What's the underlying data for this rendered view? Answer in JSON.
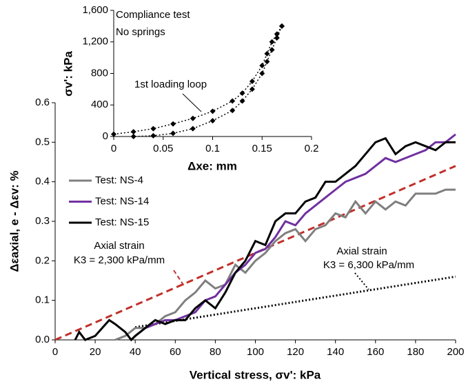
{
  "chart_data": [
    {
      "type": "line",
      "xlabel": "Vertical stress, σv': kPa",
      "ylabel": "Δεaxial, e - Δεv: %",
      "xlim": [
        0,
        200
      ],
      "xticks": [
        0,
        20,
        40,
        60,
        80,
        100,
        120,
        140,
        160,
        180,
        200
      ],
      "ylim": [
        0,
        0.6
      ],
      "yticks": [
        {
          "value": 0,
          "label": "0.0"
        },
        0.1,
        0.2,
        0.3,
        0.4,
        0.5,
        0.6
      ],
      "legend": "upper left",
      "series": [
        {
          "name": "Test: NS-4",
          "color": "#7f7f7f",
          "x": [
            30,
            35,
            40,
            45,
            50,
            55,
            60,
            65,
            70,
            75,
            80,
            85,
            90,
            95,
            100,
            105,
            110,
            115,
            120,
            125,
            130,
            135,
            140,
            145,
            150,
            155,
            160,
            165,
            170,
            175,
            180,
            185,
            190,
            195,
            200
          ],
          "values": [
            0.0,
            0.01,
            0.03,
            0.03,
            0.04,
            0.06,
            0.07,
            0.1,
            0.12,
            0.15,
            0.13,
            0.14,
            0.19,
            0.17,
            0.2,
            0.22,
            0.25,
            0.27,
            0.28,
            0.25,
            0.28,
            0.29,
            0.32,
            0.31,
            0.35,
            0.32,
            0.35,
            0.33,
            0.35,
            0.34,
            0.37,
            0.37,
            0.37,
            0.38,
            0.38
          ]
        },
        {
          "name": "Test: NS-14",
          "color": "#7030a0",
          "x": [
            38,
            40,
            45,
            50,
            55,
            60,
            65,
            70,
            75,
            80,
            85,
            90,
            95,
            100,
            105,
            110,
            115,
            120,
            125,
            130,
            135,
            140,
            145,
            150,
            155,
            160,
            165,
            170,
            175,
            180,
            185,
            190,
            195,
            200
          ],
          "values": [
            0.0,
            0.01,
            0.03,
            0.04,
            0.05,
            0.05,
            0.06,
            0.07,
            0.1,
            0.11,
            0.14,
            0.17,
            0.19,
            0.22,
            0.23,
            0.26,
            0.3,
            0.29,
            0.32,
            0.34,
            0.36,
            0.38,
            0.4,
            0.41,
            0.42,
            0.44,
            0.46,
            0.45,
            0.46,
            0.47,
            0.48,
            0.5,
            0.5,
            0.52
          ]
        },
        {
          "name": "Test: NS-15",
          "color": "#000000",
          "x": [
            10,
            12,
            15,
            20,
            27,
            30,
            35,
            38,
            40,
            45,
            50,
            55,
            60,
            65,
            70,
            75,
            80,
            85,
            90,
            95,
            100,
            105,
            110,
            115,
            120,
            125,
            130,
            135,
            140,
            145,
            150,
            155,
            160,
            165,
            170,
            175,
            180,
            185,
            190,
            195,
            200
          ],
          "values": [
            0.0,
            0.02,
            0.0,
            0.01,
            0.05,
            0.04,
            0.02,
            0.0,
            0.01,
            0.03,
            0.05,
            0.04,
            0.05,
            0.05,
            0.08,
            0.1,
            0.08,
            0.12,
            0.17,
            0.2,
            0.25,
            0.24,
            0.3,
            0.32,
            0.32,
            0.35,
            0.36,
            0.4,
            0.4,
            0.42,
            0.44,
            0.47,
            0.5,
            0.51,
            0.47,
            0.49,
            0.5,
            0.49,
            0.48,
            0.5,
            0.5
          ]
        }
      ],
      "fit_lines": [
        {
          "color": "#c0302a",
          "dash": "dashed",
          "x": [
            0,
            200
          ],
          "values": [
            0,
            0.44
          ]
        },
        {
          "color": "#000000",
          "dash": "dotted",
          "x": [
            40,
            200
          ],
          "values": [
            0.032,
            0.16
          ]
        }
      ],
      "annotations": [
        "Axial strain",
        "K3 = 2,300 kPa/mm",
        "Axial strain",
        "K3 = 6,300 kPa/mm"
      ]
    },
    {
      "type": "line",
      "xlabel": "Δxe: mm",
      "ylabel": "σv': kPa",
      "xlim": [
        0,
        0.2
      ],
      "xticks": [
        0,
        0.05,
        0.1,
        0.15,
        0.2
      ],
      "ylim": [
        0,
        1600
      ],
      "yticks": [
        0,
        400,
        800,
        {
          "value": 1200,
          "label": "1,200"
        },
        {
          "value": 1600,
          "label": "1,600"
        }
      ],
      "series": [
        {
          "color": "#000000",
          "dash": "dotted",
          "marker": "diamond",
          "x": [
            0,
            0.02,
            0.04,
            0.06,
            0.08,
            0.1,
            0.12,
            0.13,
            0.14,
            0.15,
            0.155,
            0.16,
            0.165,
            0.17
          ],
          "values": [
            30,
            60,
            100,
            160,
            230,
            320,
            450,
            550,
            700,
            900,
            1050,
            1200,
            1300,
            1400
          ]
        },
        {
          "color": "#000000",
          "dash": "dotted",
          "marker": "diamond",
          "x": [
            0.17,
            0.165,
            0.16,
            0.155,
            0.15,
            0.14,
            0.13,
            0.12,
            0.1,
            0.08,
            0.06,
            0.04,
            0.02
          ],
          "values": [
            1400,
            1250,
            1100,
            950,
            800,
            600,
            450,
            330,
            200,
            100,
            40,
            10,
            0
          ]
        }
      ],
      "annotations": [
        "Compliance test",
        "No springs",
        "1st loading loop"
      ]
    }
  ]
}
